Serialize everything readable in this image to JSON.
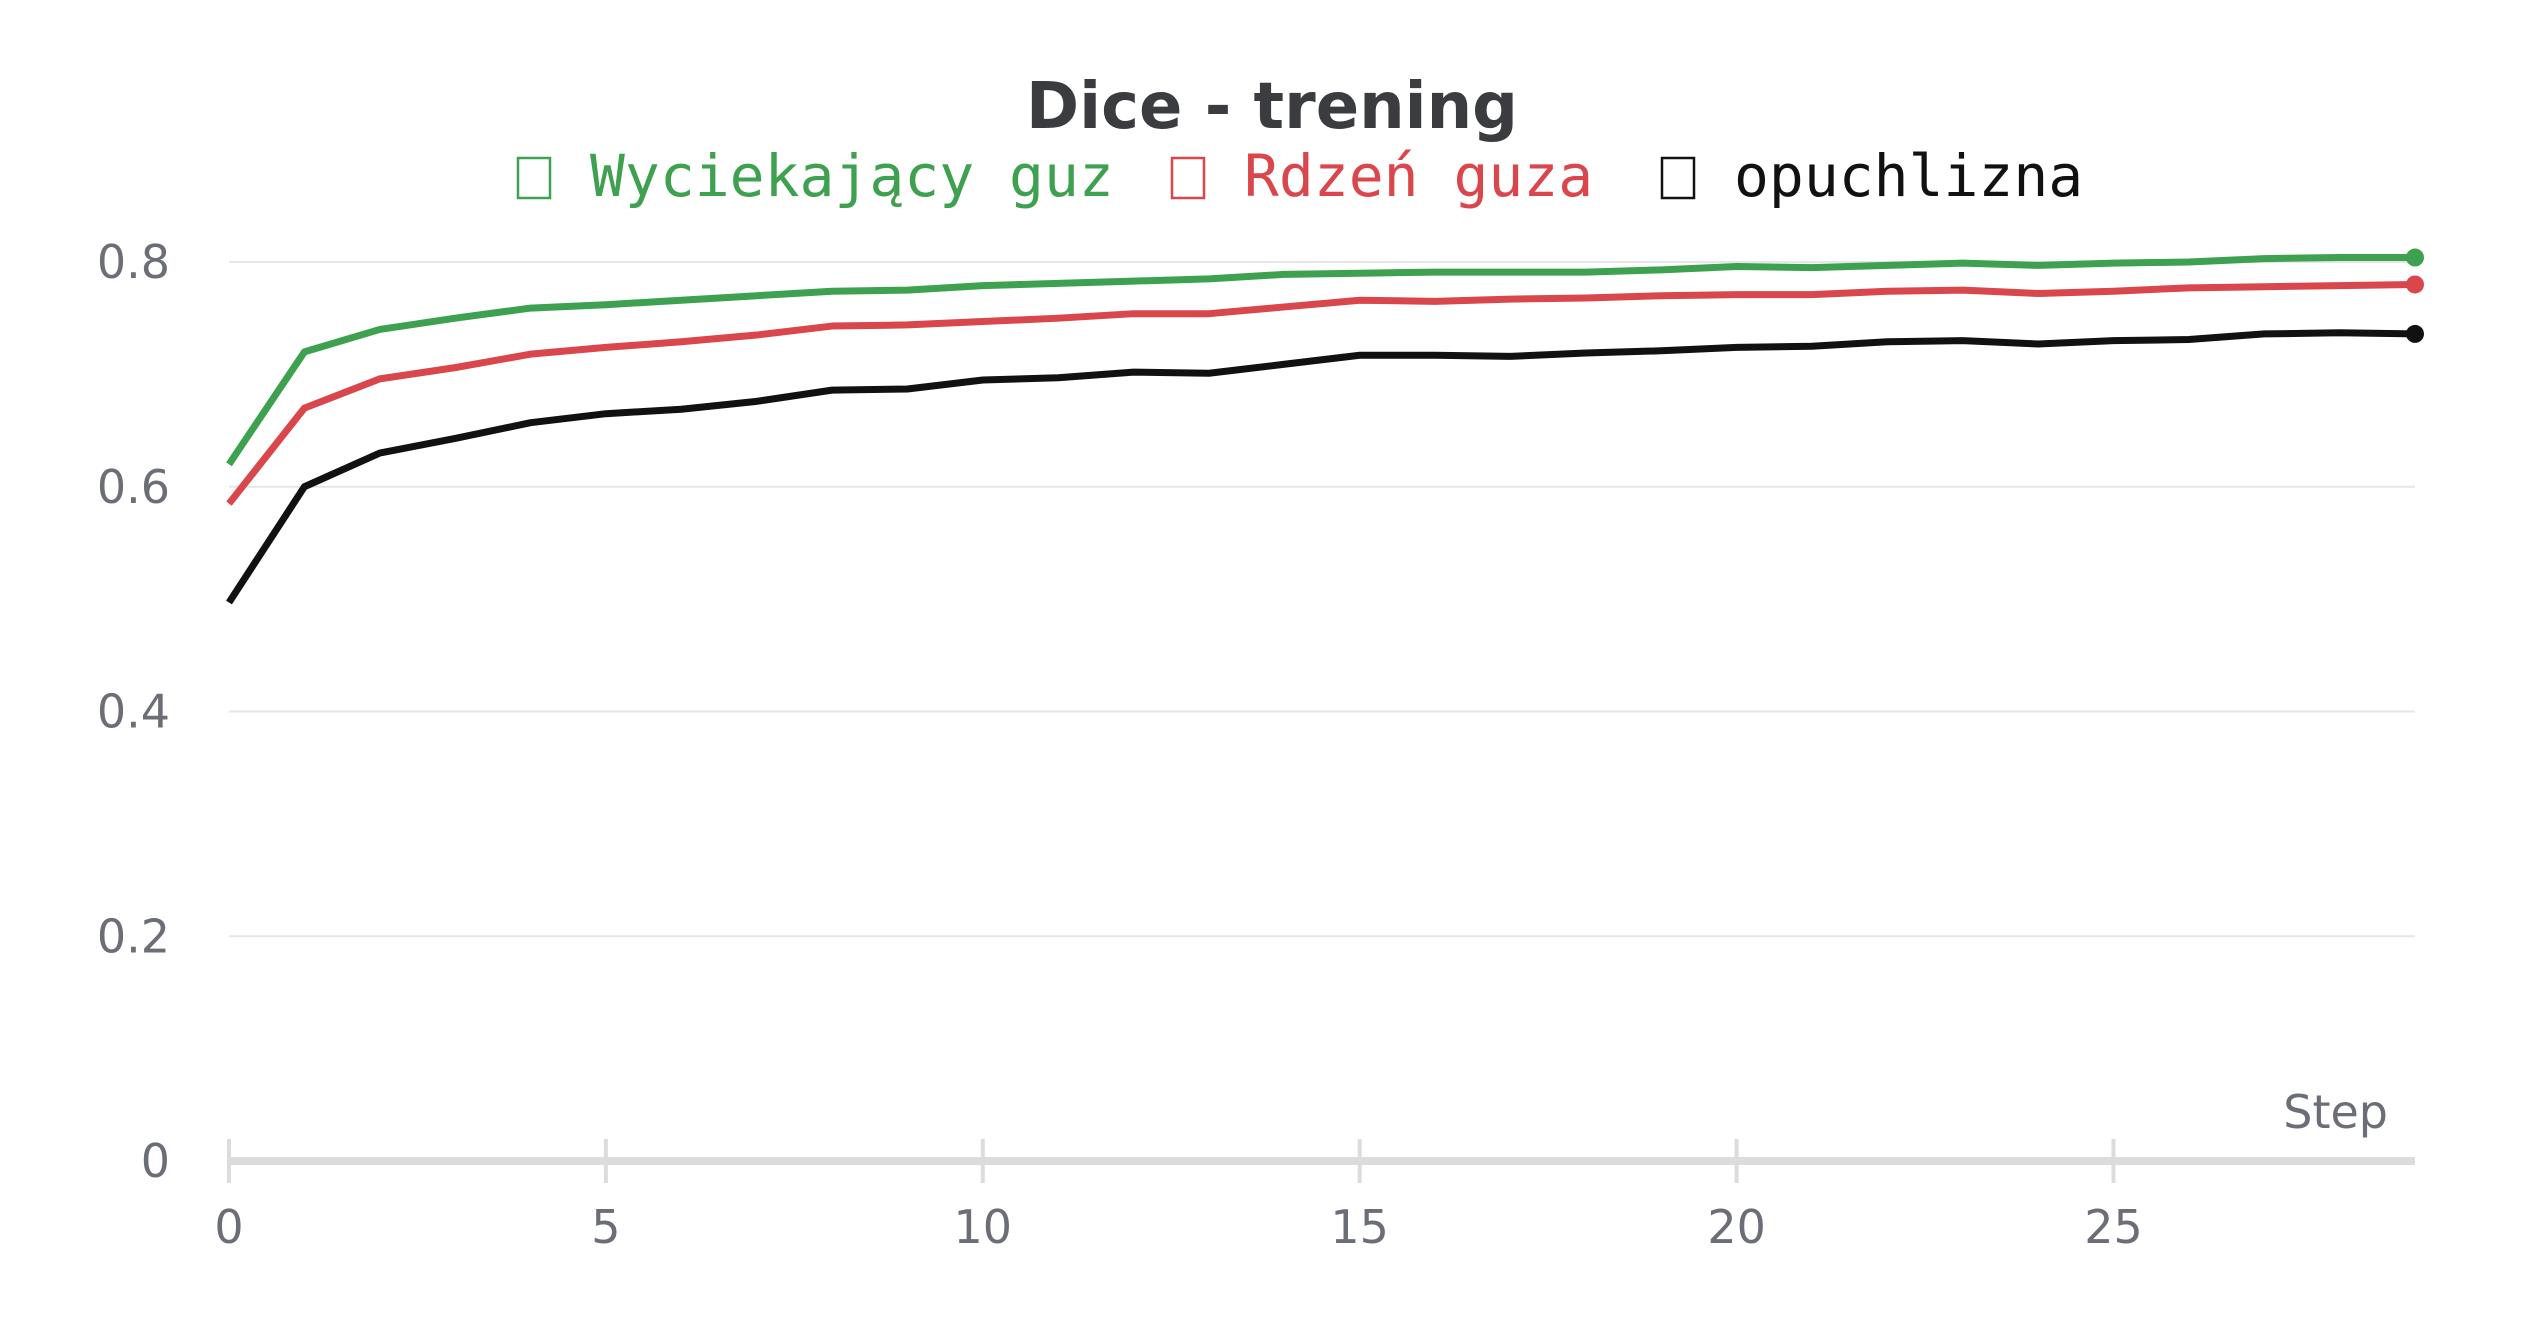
{
  "chart_data": {
    "type": "line",
    "title": "Dice - trening",
    "xlabel": "Step",
    "ylabel": "",
    "xlim": [
      0,
      29
    ],
    "ylim": [
      0,
      0.8
    ],
    "x_ticks": [
      0,
      5,
      10,
      15,
      20,
      25
    ],
    "y_ticks": [
      0,
      0.2,
      0.4,
      0.6,
      0.8
    ],
    "y_tick_labels": [
      "0",
      "0.2",
      "0.4",
      "0.6",
      "0.8"
    ],
    "grid": true,
    "legend_position": "top",
    "x": [
      0,
      1,
      2,
      3,
      4,
      5,
      6,
      7,
      8,
      9,
      10,
      11,
      12,
      13,
      14,
      15,
      16,
      17,
      18,
      19,
      20,
      21,
      22,
      23,
      24,
      25,
      26,
      27,
      28,
      29
    ],
    "series": [
      {
        "name": "Wyciekający guz",
        "color": "#3da14f",
        "values": [
          0.62,
          0.72,
          0.74,
          0.75,
          0.759,
          0.762,
          0.766,
          0.77,
          0.774,
          0.775,
          0.779,
          0.781,
          0.783,
          0.785,
          0.789,
          0.79,
          0.791,
          0.791,
          0.791,
          0.793,
          0.796,
          0.795,
          0.797,
          0.799,
          0.797,
          0.799,
          0.8,
          0.803,
          0.804,
          0.804
        ]
      },
      {
        "name": "Rdzeń guza",
        "color": "#d9464b",
        "values": [
          0.585,
          0.67,
          0.696,
          0.706,
          0.718,
          0.724,
          0.729,
          0.735,
          0.743,
          0.744,
          0.747,
          0.75,
          0.754,
          0.754,
          0.76,
          0.766,
          0.765,
          0.767,
          0.768,
          0.77,
          0.771,
          0.771,
          0.774,
          0.775,
          0.772,
          0.774,
          0.777,
          0.778,
          0.779,
          0.78
        ]
      },
      {
        "name": "opuchlizna",
        "color": "#111111",
        "values": [
          0.497,
          0.6,
          0.63,
          0.643,
          0.657,
          0.665,
          0.669,
          0.676,
          0.686,
          0.687,
          0.695,
          0.697,
          0.702,
          0.701,
          0.709,
          0.717,
          0.717,
          0.716,
          0.719,
          0.721,
          0.724,
          0.725,
          0.729,
          0.73,
          0.727,
          0.73,
          0.731,
          0.736,
          0.737,
          0.736
        ]
      }
    ]
  }
}
